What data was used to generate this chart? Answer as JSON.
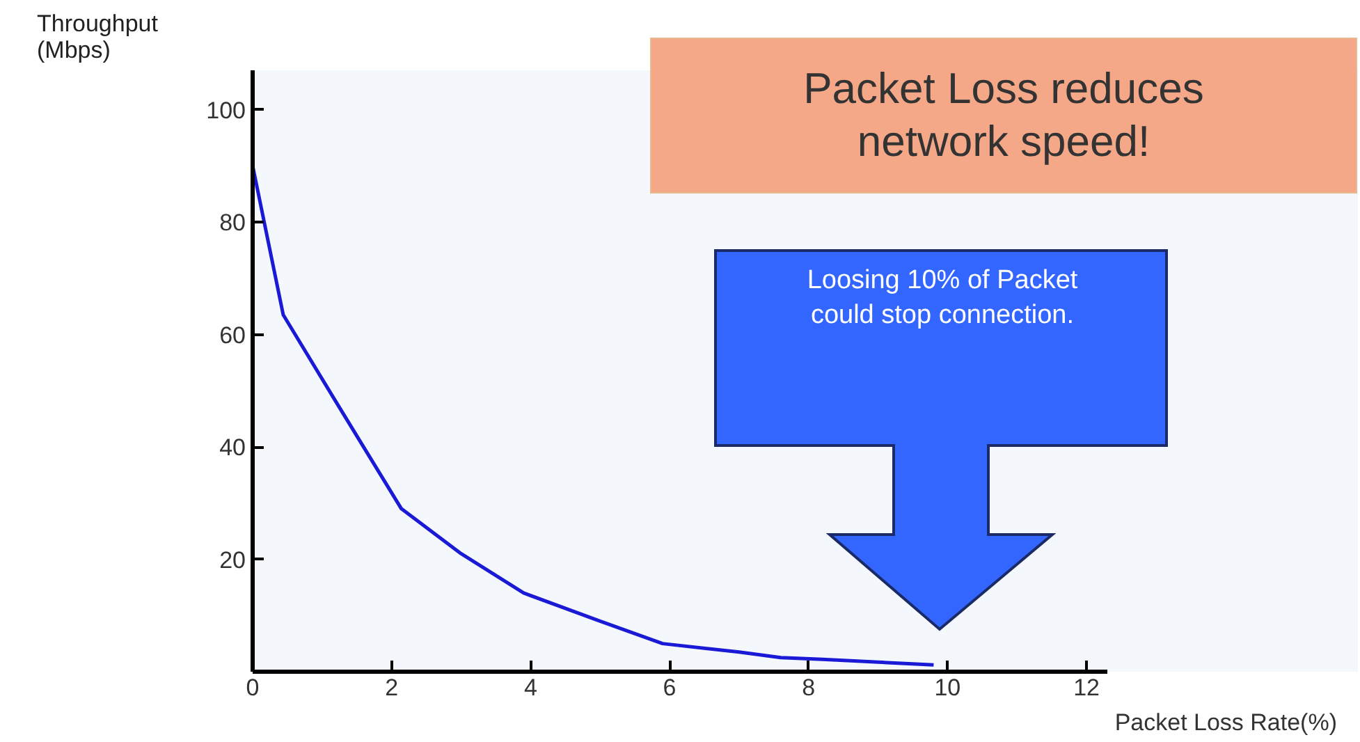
{
  "chart_data": {
    "type": "line",
    "title": "Packet Loss reduces\nnetwork speed!",
    "xlabel": "Packet Loss Rate(%)",
    "ylabel": "Throughput\n(Mbps)",
    "annotations": [
      "Loosing 10% of Packet\ncould stop connection."
    ],
    "series": [
      {
        "color": "#1a1ad6",
        "x": [
          0,
          0.44,
          1.2,
          2.14,
          3,
          3.9,
          5,
          5.9,
          7,
          7.6,
          8.2,
          9.8
        ],
        "values": [
          90,
          63.5,
          48,
          29,
          21,
          14,
          9,
          5,
          3.5,
          2.5,
          2.2,
          1.2
        ]
      }
    ],
    "xlim": [
      0,
      12.3
    ],
    "ylim": [
      0,
      107
    ],
    "xticks": [
      0,
      2,
      4,
      6,
      8,
      10,
      12
    ],
    "yticks": [
      20,
      40,
      60,
      80,
      100
    ],
    "grid": false,
    "marker": "none",
    "line_style": "solid"
  }
}
